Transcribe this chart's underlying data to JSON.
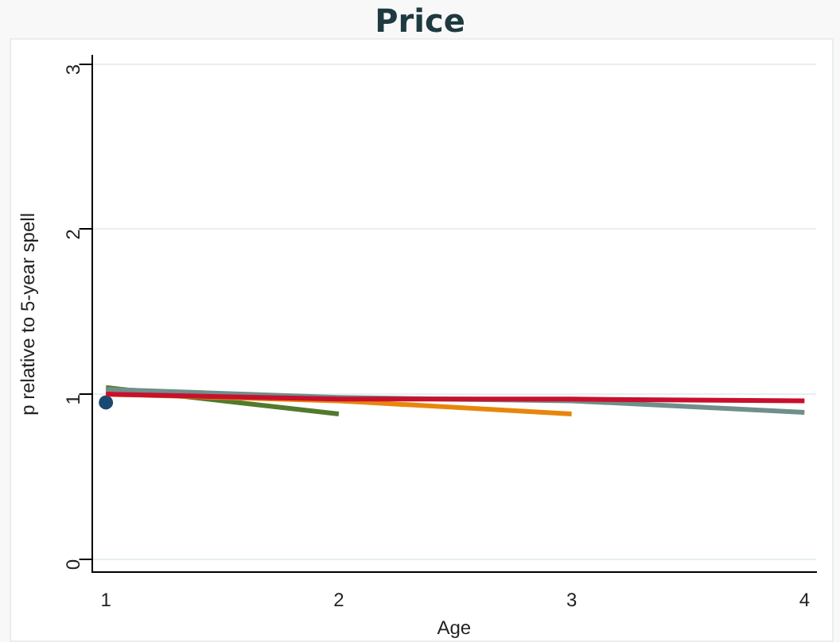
{
  "chart_data": {
    "type": "line",
    "title": "Price",
    "xlabel": "Age",
    "ylabel": "p relative to 5-year spell",
    "xlim": [
      0.94,
      4.05
    ],
    "xticks": [
      1,
      2,
      3,
      4
    ],
    "ylim": [
      -0.08,
      3.05
    ],
    "yticks": [
      0,
      1,
      2,
      3
    ],
    "grid": "y",
    "legend": false,
    "marker": "none",
    "series": [
      {
        "color": "#c8102e",
        "x": [
          1,
          2,
          3,
          4
        ],
        "values": [
          1.0,
          0.97,
          0.97,
          0.96
        ]
      },
      {
        "color": "#6f8f8a",
        "x": [
          1,
          2,
          3,
          4
        ],
        "values": [
          1.03,
          0.98,
          0.96,
          0.89
        ]
      },
      {
        "color": "#e8860c",
        "x": [
          1,
          2,
          3
        ],
        "values": [
          1.0,
          0.96,
          0.88
        ]
      },
      {
        "color": "#527a2c",
        "x": [
          1,
          2
        ],
        "values": [
          1.04,
          0.88
        ]
      },
      {
        "type": "scatter",
        "marker": "circle",
        "color": "#1a4a72",
        "x": [
          1
        ],
        "values": [
          0.95
        ]
      }
    ]
  }
}
